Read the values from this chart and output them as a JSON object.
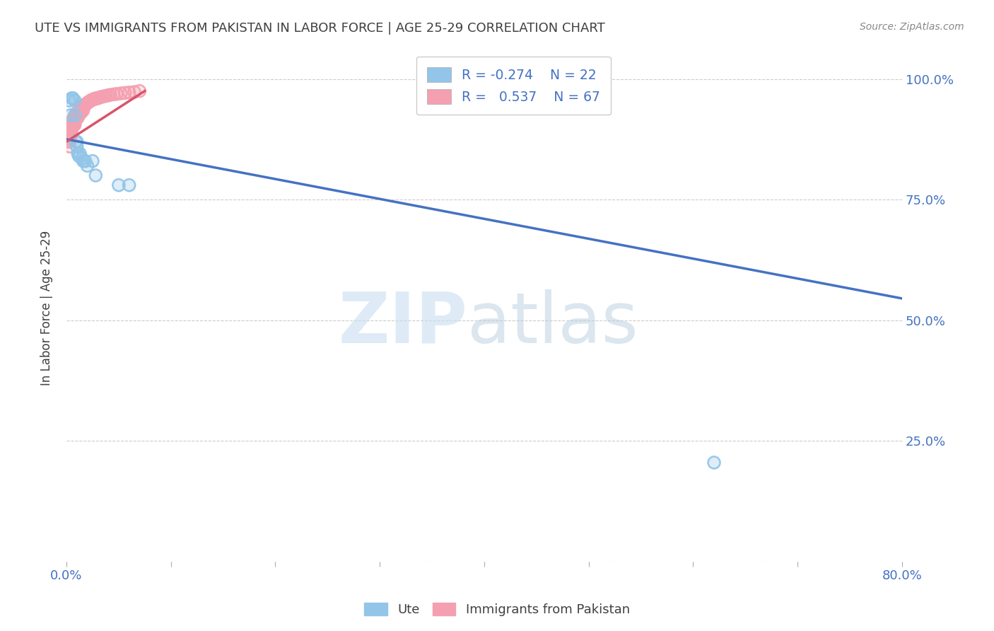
{
  "title": "UTE VS IMMIGRANTS FROM PAKISTAN IN LABOR FORCE | AGE 25-29 CORRELATION CHART",
  "source": "Source: ZipAtlas.com",
  "ylabel": "In Labor Force | Age 25-29",
  "xlim": [
    0.0,
    0.8
  ],
  "ylim": [
    0.0,
    1.05
  ],
  "ute_color": "#92C5E8",
  "pakistan_color": "#F4A0B0",
  "trendline_ute_color": "#4472C4",
  "trendline_pakistan_color": "#D9536A",
  "legend_r_ute": "-0.274",
  "legend_n_ute": "22",
  "legend_r_pak": "0.537",
  "legend_n_pak": "67",
  "background_color": "#FFFFFF",
  "grid_color": "#CCCCCC",
  "axis_label_color": "#4472C4",
  "title_color": "#404040",
  "ute_x": [
    0.003,
    0.004,
    0.005,
    0.006,
    0.006,
    0.008,
    0.008,
    0.009,
    0.01,
    0.01,
    0.011,
    0.012,
    0.013,
    0.015,
    0.016,
    0.018,
    0.02,
    0.025,
    0.028,
    0.05,
    0.06,
    0.62
  ],
  "ute_y": [
    0.955,
    0.925,
    0.96,
    0.96,
    0.96,
    0.955,
    0.925,
    0.87,
    0.87,
    0.86,
    0.845,
    0.84,
    0.845,
    0.835,
    0.83,
    0.83,
    0.82,
    0.83,
    0.8,
    0.78,
    0.78,
    0.205
  ],
  "pak_x": [
    0.002,
    0.002,
    0.003,
    0.003,
    0.003,
    0.003,
    0.003,
    0.004,
    0.004,
    0.004,
    0.004,
    0.005,
    0.005,
    0.005,
    0.005,
    0.005,
    0.006,
    0.006,
    0.006,
    0.007,
    0.007,
    0.007,
    0.008,
    0.008,
    0.008,
    0.009,
    0.009,
    0.01,
    0.01,
    0.011,
    0.011,
    0.012,
    0.012,
    0.013,
    0.013,
    0.014,
    0.014,
    0.015,
    0.016,
    0.016,
    0.017,
    0.018,
    0.019,
    0.02,
    0.021,
    0.022,
    0.023,
    0.024,
    0.025,
    0.026,
    0.027,
    0.028,
    0.03,
    0.031,
    0.032,
    0.034,
    0.036,
    0.038,
    0.04,
    0.042,
    0.045,
    0.048,
    0.052,
    0.056,
    0.06,
    0.065,
    0.07
  ],
  "pak_y": [
    0.88,
    0.87,
    0.9,
    0.88,
    0.875,
    0.87,
    0.86,
    0.905,
    0.9,
    0.895,
    0.885,
    0.91,
    0.905,
    0.9,
    0.895,
    0.885,
    0.915,
    0.91,
    0.9,
    0.92,
    0.91,
    0.905,
    0.92,
    0.915,
    0.905,
    0.925,
    0.915,
    0.93,
    0.92,
    0.93,
    0.92,
    0.935,
    0.925,
    0.94,
    0.93,
    0.94,
    0.93,
    0.942,
    0.945,
    0.935,
    0.945,
    0.947,
    0.948,
    0.95,
    0.952,
    0.953,
    0.955,
    0.956,
    0.957,
    0.958,
    0.958,
    0.96,
    0.96,
    0.961,
    0.962,
    0.963,
    0.964,
    0.965,
    0.966,
    0.967,
    0.968,
    0.969,
    0.97,
    0.971,
    0.972,
    0.973,
    0.975
  ],
  "ute_trendline_x": [
    0.0,
    0.8
  ],
  "ute_trendline_y": [
    0.875,
    0.545
  ],
  "pak_trendline_x": [
    0.0,
    0.075
  ],
  "pak_trendline_y": [
    0.87,
    0.975
  ]
}
